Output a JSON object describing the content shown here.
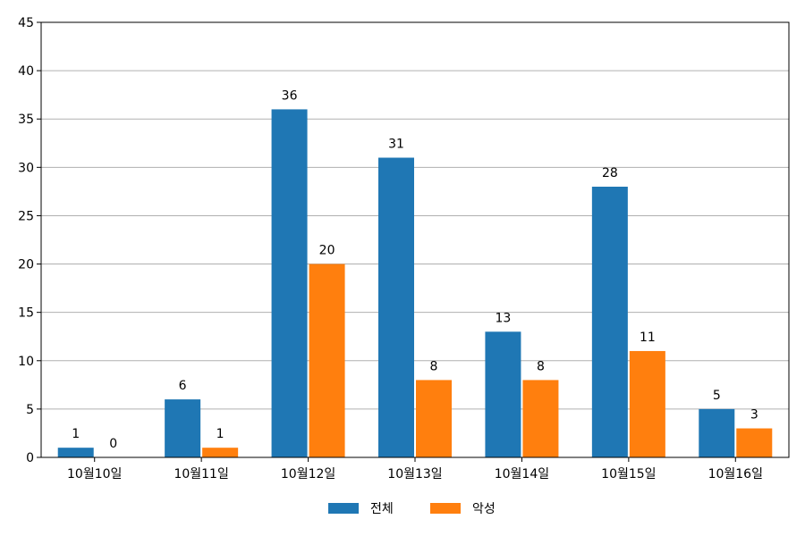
{
  "chart_data": {
    "type": "bar",
    "categories": [
      "10월10일",
      "10월11일",
      "10월12일",
      "10월13일",
      "10월14일",
      "10월15일",
      "10월16일"
    ],
    "series": [
      {
        "name": "전체",
        "values": [
          1,
          6,
          36,
          31,
          13,
          28,
          5
        ],
        "color": "#1f77b4"
      },
      {
        "name": "악성",
        "values": [
          0,
          1,
          20,
          8,
          8,
          11,
          3
        ],
        "color": "#ff7f0e"
      }
    ],
    "ylim": [
      0,
      45
    ],
    "yticks": [
      0,
      5,
      10,
      15,
      20,
      25,
      30,
      35,
      40,
      45
    ],
    "grid": "horizontal",
    "data_labels": true,
    "legend_position": "bottom-center",
    "title": "",
    "xlabel": "",
    "ylabel": ""
  }
}
